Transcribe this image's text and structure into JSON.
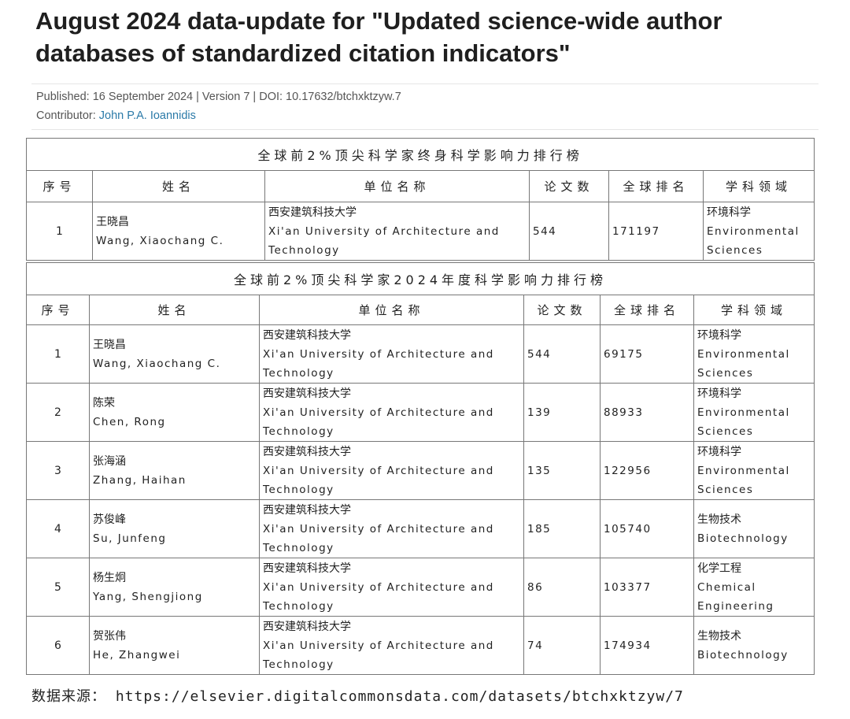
{
  "title": "August 2024 data-update for \"Updated science-wide author databases of standardized citation indicators\"",
  "meta": {
    "published": "Published: 16 September 2024 | Version 7 | DOI: 10.17632/btchxktzyw.7",
    "contributor_label": "Contributor: ",
    "contributor": "John P.A. Ioannidis"
  },
  "headers": [
    "序号",
    "姓名",
    "单位名称",
    "论文数",
    "全球排名",
    "学科领域"
  ],
  "table1": {
    "title": "全球前2%顶尖科学家终身科学影响力排行榜",
    "rows": [
      {
        "no": "1",
        "name_cn": "王晓昌",
        "name_en": "Wang, Xiaochang C.",
        "inst_cn": "西安建筑科技大学",
        "inst_en": "Xi'an University of Architecture and Technology",
        "papers": "544",
        "rank": "171197",
        "field_cn": "环境科学",
        "field_en": "Environmental Sciences"
      }
    ]
  },
  "table2": {
    "title": "全球前2%顶尖科学家2024年度科学影响力排行榜",
    "rows": [
      {
        "no": "1",
        "name_cn": "王晓昌",
        "name_en": "Wang, Xiaochang C.",
        "inst_cn": "西安建筑科技大学",
        "inst_en": "Xi'an University of Architecture and Technology",
        "papers": "544",
        "rank": "69175",
        "field_cn": "环境科学",
        "field_en": "Environmental Sciences"
      },
      {
        "no": "2",
        "name_cn": "陈荣",
        "name_en": "Chen, Rong",
        "inst_cn": "西安建筑科技大学",
        "inst_en": "Xi'an University of Architecture and Technology",
        "papers": "139",
        "rank": "88933",
        "field_cn": "环境科学",
        "field_en": "Environmental Sciences"
      },
      {
        "no": "3",
        "name_cn": "张海涵",
        "name_en": "Zhang, Haihan",
        "inst_cn": "西安建筑科技大学",
        "inst_en": "Xi'an University of Architecture and Technology",
        "papers": "135",
        "rank": "122956",
        "field_cn": "环境科学",
        "field_en": "Environmental Sciences"
      },
      {
        "no": "4",
        "name_cn": "苏俊峰",
        "name_en": "Su, Junfeng",
        "inst_cn": "西安建筑科技大学",
        "inst_en": "Xi'an University of Architecture and Technology",
        "papers": "185",
        "rank": "105740",
        "field_cn": "生物技术",
        "field_en": "Biotechnology"
      },
      {
        "no": "5",
        "name_cn": "杨生炯",
        "name_en": "Yang, Shengjiong",
        "inst_cn": "西安建筑科技大学",
        "inst_en": "Xi'an University of Architecture and Technology",
        "papers": "86",
        "rank": "103377",
        "field_cn": "化学工程",
        "field_en": "Chemical Engineering"
      },
      {
        "no": "6",
        "name_cn": "贺张伟",
        "name_en": "He, Zhangwei",
        "inst_cn": "西安建筑科技大学",
        "inst_en": "Xi'an University of Architecture and Technology",
        "papers": "74",
        "rank": "174934",
        "field_cn": "生物技术",
        "field_en": "Biotechnology"
      }
    ]
  },
  "footer": "数据来源： https://elsevier.digitalcommonsdata.com/datasets/btchxktzyw/7"
}
